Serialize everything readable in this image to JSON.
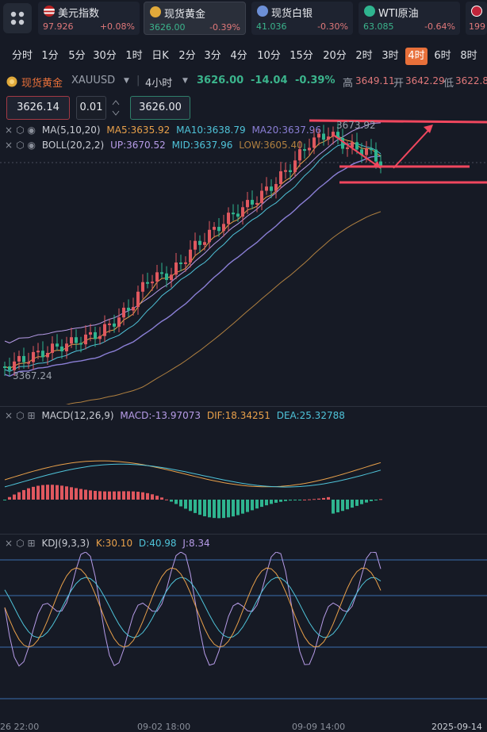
{
  "tickers": [
    {
      "name": "美元指数",
      "price": "97.926",
      "change": "+0.08%",
      "dir": "up",
      "flag": "us-flag-icon"
    },
    {
      "name": "现货黄金",
      "price": "3626.00",
      "change": "-0.39%",
      "dir": "down",
      "flag": "gold-icon"
    },
    {
      "name": "现货白银",
      "price": "41.036",
      "change": "-0.30%",
      "dir": "down",
      "flag": "silver-icon"
    },
    {
      "name": "WTI原油",
      "price": "63.085",
      "change": "-0.64%",
      "dir": "down",
      "flag": "oil-icon"
    },
    {
      "name": "",
      "price": "199",
      "change": "",
      "dir": "up",
      "flag": "uk-flag-icon"
    }
  ],
  "timeframes": [
    "分时",
    "1分",
    "5分",
    "30分",
    "1时",
    "日K",
    "2分",
    "3分",
    "4分",
    "10分",
    "15分",
    "20分",
    "2时",
    "3时",
    "4时",
    "6时",
    "8时"
  ],
  "selected_timeframe": "4时",
  "symbol": {
    "name": "现货黄金",
    "code": "XAUUSD",
    "period": "4小时",
    "price": "3626.00",
    "change": "-14.04",
    "change_pct": "-0.39%",
    "high_label": "高",
    "high": "3649.11",
    "open_label": "开",
    "open": "3642.29",
    "low_label": "低",
    "low": "3622.8"
  },
  "order": {
    "sell_price": "3626.14",
    "lot": "0.01",
    "buy_price": "3626.00"
  },
  "indicators": {
    "ma": {
      "label": "MA(5,10,20)",
      "ma5": "MA5:3635.92",
      "ma10": "MA10:3638.79",
      "ma20": "MA20:3637.96"
    },
    "boll": {
      "label": "BOLL(20,2,2)",
      "up": "UP:3670.52",
      "mid": "MID:3637.96",
      "low": "LOW:3605.40"
    },
    "macd": {
      "label": "MACD(12,26,9)",
      "macd": "MACD:-13.97073",
      "dif": "DIF:18.34251",
      "dea": "DEA:25.32788"
    },
    "kdj": {
      "label": "KDJ(9,3,3)",
      "k": "K:30.10",
      "d": "D:40.98",
      "j": "J:8.34"
    }
  },
  "chart_labels": {
    "high_mark": "3673.92",
    "low_mark": "3367.24"
  },
  "x_axis": [
    "26 22:00",
    "09-02 18:00",
    "09-09 14:00",
    "2025-09-14"
  ],
  "colors": {
    "up": "#e0585f",
    "down": "#2fb48f",
    "ma5": "#e8a04a",
    "ma10": "#4fc3d9",
    "ma20": "#8b7fd6",
    "boll_up": "#b79ce8",
    "boll_low": "#b08040",
    "annotation": "#f0475e",
    "accent": "#e8703a"
  }
}
